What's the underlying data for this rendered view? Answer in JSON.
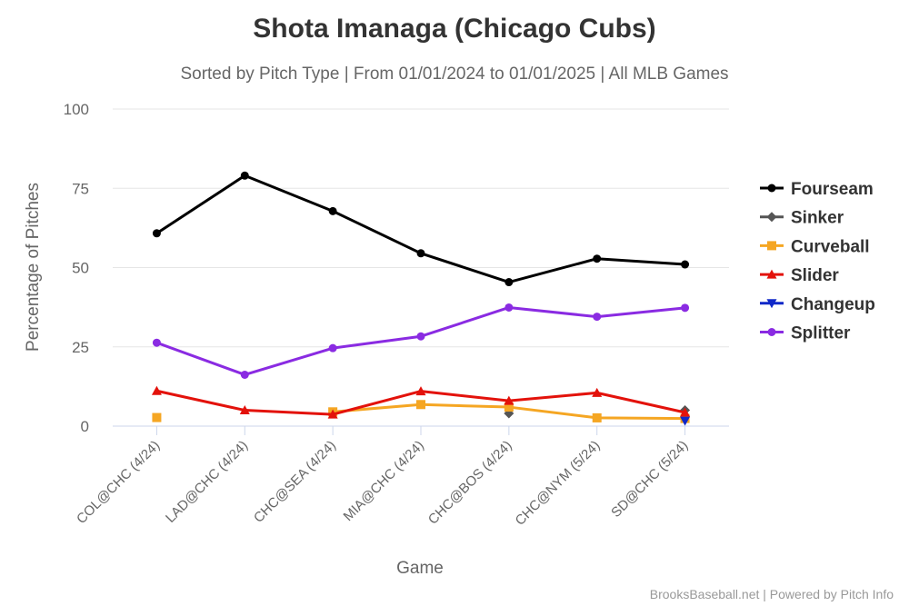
{
  "chart_data": {
    "type": "line",
    "title": "Shota Imanaga (Chicago Cubs)",
    "subtitle": "Sorted by Pitch Type | From 01/01/2024 to 01/01/2025 | All MLB Games",
    "xlabel": "Game",
    "ylabel": "Percentage of Pitches",
    "ylim": [
      0,
      100
    ],
    "yticks": [
      0,
      25,
      50,
      75,
      100
    ],
    "grid": true,
    "legend_position": "right",
    "categories": [
      "COL@CHC (4/24)",
      "LAD@CHC (4/24)",
      "CHC@SEA (4/24)",
      "MIA@CHC (4/24)",
      "CHC@BOS (4/24)",
      "CHC@NYM (5/24)",
      "SD@CHC (5/24)"
    ],
    "series": [
      {
        "name": "Fourseam",
        "color": "#000000",
        "marker": "circle",
        "values": [
          60.8,
          79.0,
          67.8,
          54.5,
          45.4,
          52.8,
          51.0
        ]
      },
      {
        "name": "Sinker",
        "color": "#555555",
        "marker": "diamond",
        "values": [
          null,
          null,
          null,
          null,
          4.0,
          null,
          5.0
        ]
      },
      {
        "name": "Curveball",
        "color": "#f5a623",
        "marker": "square",
        "values": [
          2.7,
          null,
          4.5,
          6.8,
          6.0,
          2.6,
          2.4
        ]
      },
      {
        "name": "Slider",
        "color": "#e3120b",
        "marker": "triangle",
        "values": [
          11.1,
          5.0,
          3.7,
          11.0,
          8.0,
          10.5,
          4.3
        ]
      },
      {
        "name": "Changeup",
        "color": "#1028c8",
        "marker": "triangle-down",
        "values": [
          null,
          null,
          null,
          null,
          null,
          null,
          1.7
        ]
      },
      {
        "name": "Splitter",
        "color": "#8a2be2",
        "marker": "circle",
        "values": [
          26.3,
          16.2,
          24.6,
          28.3,
          37.4,
          34.5,
          37.3
        ]
      }
    ],
    "credits": "BrooksBaseball.net | Powered by Pitch Info"
  }
}
